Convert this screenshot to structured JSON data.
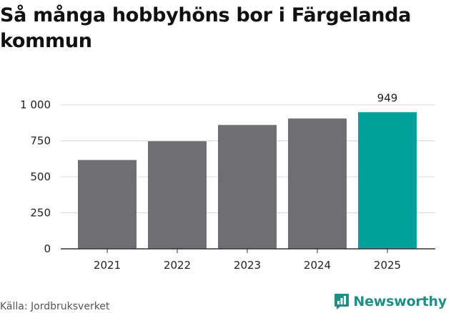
{
  "title": "Så många hobbyhöns bor i Färgelanda kommun",
  "source": "Källa: Jordbruksverket",
  "brand": "Newsworthy",
  "colors": {
    "bar": "#6f6e73",
    "highlight": "#00a199",
    "grid": "#d9d9d9",
    "axis": "#333333",
    "brand": "#1f8f86"
  },
  "icons": {
    "brand_logo": "newsworthy-logo-icon"
  },
  "chart_data": {
    "type": "bar",
    "title": "Så många hobbyhöns bor i Färgelanda kommun",
    "xlabel": "",
    "ylabel": "",
    "categories": [
      "2021",
      "2022",
      "2023",
      "2024",
      "2025"
    ],
    "values": [
      617,
      747,
      860,
      905,
      949
    ],
    "highlight_index": 4,
    "data_labels": [
      {
        "index": 4,
        "text": "949"
      }
    ],
    "ylim": [
      0,
      1000
    ],
    "yticks": [
      0,
      250,
      500,
      750,
      1000
    ],
    "ytick_labels": [
      "0",
      "250",
      "500",
      "750",
      "1 000"
    ],
    "grid": true,
    "legend": "none"
  }
}
